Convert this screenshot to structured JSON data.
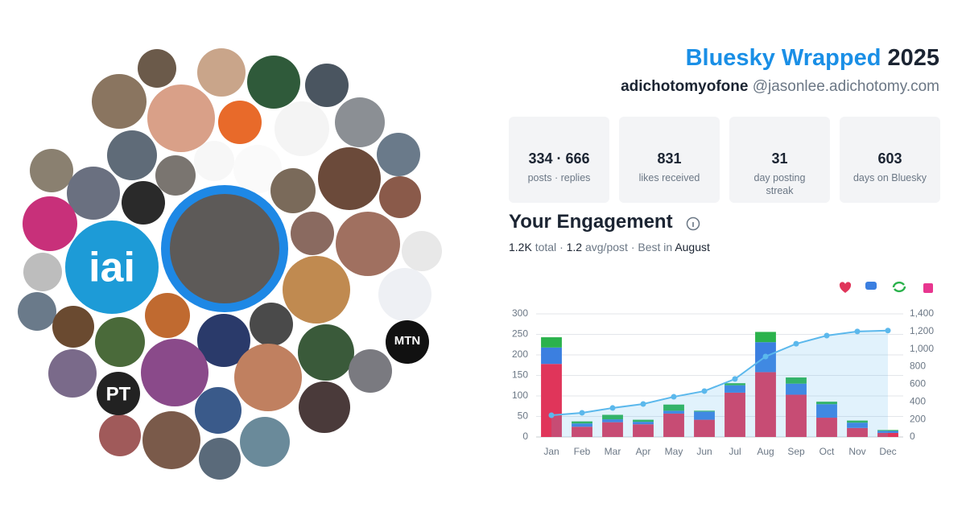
{
  "header": {
    "title_brand": "Bluesky Wrapped",
    "title_year": "2025",
    "display_name": "adichotomyofone",
    "handle": "@jasonlee.adichotomy.com"
  },
  "stats": [
    {
      "value": "334 · 666",
      "label": "posts · replies"
    },
    {
      "value": "831",
      "label": "likes received"
    },
    {
      "value": "31",
      "label": "day posting streak"
    },
    {
      "value": "603",
      "label": "days on Bluesky"
    }
  ],
  "engagement": {
    "title": "Your Engagement",
    "total": "1.2K",
    "total_label": "total",
    "separator": "·",
    "avg": "1.2",
    "avg_label": "avg/post",
    "best_label": "Best in",
    "best": "August"
  },
  "collage": {
    "labels": [
      "iai",
      "PT",
      "MTN"
    ]
  },
  "chart_data": {
    "type": "bar",
    "stacked": true,
    "grid": true,
    "categories": [
      "Jan",
      "Feb",
      "Mar",
      "Apr",
      "May",
      "Jun",
      "Jul",
      "Aug",
      "Sep",
      "Oct",
      "Nov",
      "Dec"
    ],
    "series": [
      {
        "color": "#e0355a",
        "values": [
          178,
          25,
          36,
          31,
          57,
          42,
          108,
          158,
          103,
          47,
          22,
          10
        ]
      },
      {
        "color": "#3b7fe0",
        "values": [
          40,
          8,
          7,
          6,
          7,
          20,
          18,
          73,
          27,
          33,
          13,
          5
        ]
      },
      {
        "color": "#2bb24c",
        "values": [
          25,
          5,
          11,
          5,
          15,
          2,
          5,
          25,
          15,
          6,
          5,
          2
        ]
      },
      {
        "color": "#5bb8ec",
        "type": "line",
        "axis": "y2",
        "values": [
          247,
          275,
          330,
          375,
          457,
          522,
          660,
          915,
          1060,
          1153,
          1200,
          1210
        ]
      }
    ],
    "ylim": [
      0,
      300
    ],
    "yticks": [
      0,
      50,
      100,
      150,
      200,
      250,
      300
    ],
    "y2lim": [
      0,
      1400
    ],
    "y2ticks": [
      0,
      200,
      400,
      600,
      800,
      {
        "value": 1000,
        "label": "1,000"
      },
      {
        "value": 1200,
        "label": "1,200"
      },
      {
        "value": 1400,
        "label": "1,400"
      }
    ]
  }
}
